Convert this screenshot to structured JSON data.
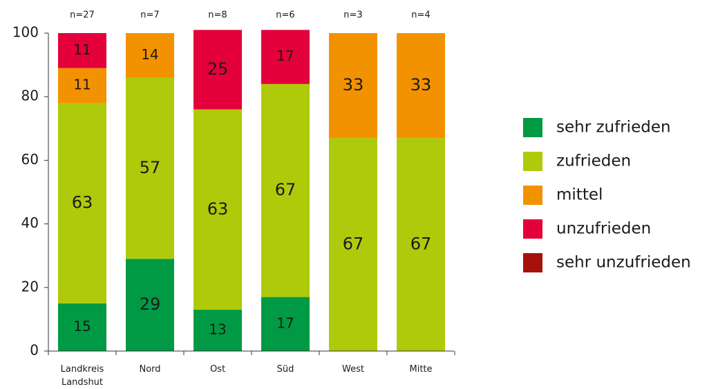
{
  "chart_data": {
    "type": "stacked_bar",
    "categories": [
      "Landkreis Landshut",
      "Nord",
      "Ost",
      "Süd",
      "West",
      "Mitte"
    ],
    "annotations": [
      "n=27",
      "n=7",
      "n=8",
      "n=6",
      "n=3",
      "n=4"
    ],
    "series": [
      {
        "name": "sehr zufrieden",
        "color": "#009a44",
        "values": [
          15,
          29,
          13,
          17,
          0,
          0
        ]
      },
      {
        "name": "zufrieden",
        "color": "#afca0b",
        "values": [
          63,
          57,
          63,
          67,
          67,
          67
        ]
      },
      {
        "name": "mittel",
        "color": "#f39200",
        "values": [
          11,
          14,
          0,
          0,
          33,
          33
        ]
      },
      {
        "name": "unzufrieden",
        "color": "#e4003b",
        "values": [
          11,
          0,
          25,
          17,
          0,
          0
        ]
      },
      {
        "name": "sehr unzufrieden",
        "color": "#a5120c",
        "values": [
          0,
          0,
          0,
          0,
          0,
          0
        ]
      }
    ],
    "ylim": [
      0,
      100
    ],
    "yticks": [
      0,
      20,
      40,
      60,
      80,
      100
    ],
    "legend": "right"
  }
}
